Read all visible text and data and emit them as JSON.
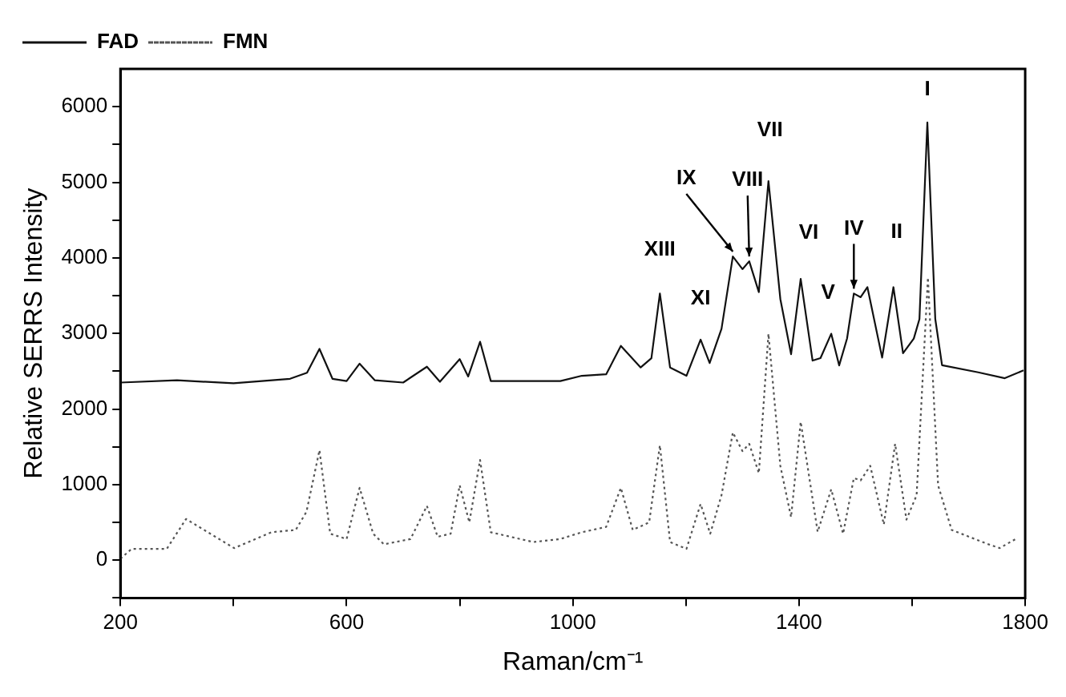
{
  "chart_data": {
    "type": "line",
    "xlabel": "Raman/cm⁻¹",
    "ylabel": "Relative SERRS Intensity",
    "xlim": [
      200,
      1800
    ],
    "xticks": [
      200,
      {
        "value": 400,
        "label": null
      },
      600,
      {
        "value": 800,
        "label": null
      },
      1000,
      {
        "value": 1200,
        "label": null
      },
      1400,
      {
        "value": 1600,
        "label": null
      },
      1800
    ],
    "ylim": [
      -500,
      6500
    ],
    "yticks": [
      {
        "value": -500,
        "label": null
      },
      0,
      {
        "value": 500,
        "label": null
      },
      1000,
      {
        "value": 1500,
        "label": null
      },
      2000,
      {
        "value": 2500,
        "label": null
      },
      3000,
      {
        "value": 3500,
        "label": null
      },
      4000,
      {
        "value": 4500,
        "label": null
      },
      5000,
      {
        "value": 5500,
        "label": null
      },
      6000
    ],
    "grid": false,
    "legend": "top left",
    "marker": "none",
    "series": [
      {
        "name": "FAD",
        "color": "#111111",
        "line_style": "solid",
        "x": [
          200,
          300,
          400,
          500,
          530,
          552,
          575,
          600,
          623,
          650,
          700,
          742,
          765,
          800,
          815,
          836,
          855,
          950,
          978,
          1016,
          1059,
          1085,
          1120,
          1139,
          1154,
          1172,
          1201,
          1226,
          1242,
          1263,
          1283,
          1300,
          1312,
          1329,
          1346,
          1367,
          1386,
          1403,
          1424,
          1438,
          1457,
          1471,
          1485,
          1497,
          1509,
          1521,
          1547,
          1567,
          1584,
          1603,
          1613,
          1627,
          1641,
          1653,
          1717,
          1764,
          1797
        ],
        "values": [
          2350,
          2380,
          2340,
          2400,
          2480,
          2796,
          2400,
          2370,
          2600,
          2380,
          2350,
          2560,
          2360,
          2660,
          2430,
          2890,
          2370,
          2370,
          2370,
          2440,
          2460,
          2835,
          2550,
          2673,
          3528,
          2550,
          2440,
          2918,
          2608,
          3062,
          4019,
          3851,
          3955,
          3547,
          5016,
          3456,
          2725,
          3722,
          2641,
          2673,
          2996,
          2577,
          2933,
          3528,
          3480,
          3612,
          2680,
          3612,
          2738,
          2932,
          3190,
          5792,
          3190,
          2580,
          2485,
          2408,
          2511
        ]
      },
      {
        "name": "FMN",
        "color": "#555555",
        "line_style": "dotted",
        "x": [
          200,
          220,
          282,
          316,
          401,
          467,
          510,
          529,
          552,
          571,
          600,
          623,
          647,
          666,
          713,
          742,
          761,
          784,
          800,
          817,
          836,
          855,
          930,
          978,
          1016,
          1059,
          1085,
          1106,
          1135,
          1154,
          1172,
          1201,
          1226,
          1243,
          1263,
          1283,
          1300,
          1312,
          1329,
          1346,
          1367,
          1386,
          1403,
          1433,
          1457,
          1478,
          1497,
          1509,
          1526,
          1550,
          1570,
          1590,
          1608,
          1628,
          1646,
          1670,
          1735,
          1755,
          1783
        ],
        "values": [
          20,
          150,
          150,
          545,
          160,
          370,
          400,
          640,
          1456,
          350,
          280,
          957,
          350,
          210,
          280,
          718,
          310,
          350,
          990,
          500,
          1326,
          370,
          240,
          280,
          370,
          440,
          957,
          400,
          500,
          1521,
          240,
          150,
          744,
          350,
          860,
          1690,
          1443,
          1540,
          1152,
          2996,
          1249,
          569,
          1831,
          375,
          938,
          350,
          1087,
          1055,
          1249,
          472,
          1540,
          537,
          860,
          3740,
          990,
          400,
          210,
          160,
          280
        ]
      }
    ],
    "annotations": [
      {
        "text": "I",
        "x": 1627,
        "y": 5792
      },
      {
        "text": "II",
        "x": 1567,
        "y": 3612
      },
      {
        "text": "IV",
        "x": 1497,
        "y": 3528
      },
      {
        "text": "V",
        "x": 1457,
        "y": 2996
      },
      {
        "text": "VI",
        "x": 1403,
        "y": 3722
      },
      {
        "text": "VII",
        "x": 1346,
        "y": 5016
      },
      {
        "text": "VIII",
        "x": 1312,
        "y": 3955
      },
      {
        "text": "IX",
        "x": 1283,
        "y": 4019
      },
      {
        "text": "XI",
        "x": 1226,
        "y": 2918
      },
      {
        "text": "XIII",
        "x": 1154,
        "y": 3528
      }
    ]
  }
}
